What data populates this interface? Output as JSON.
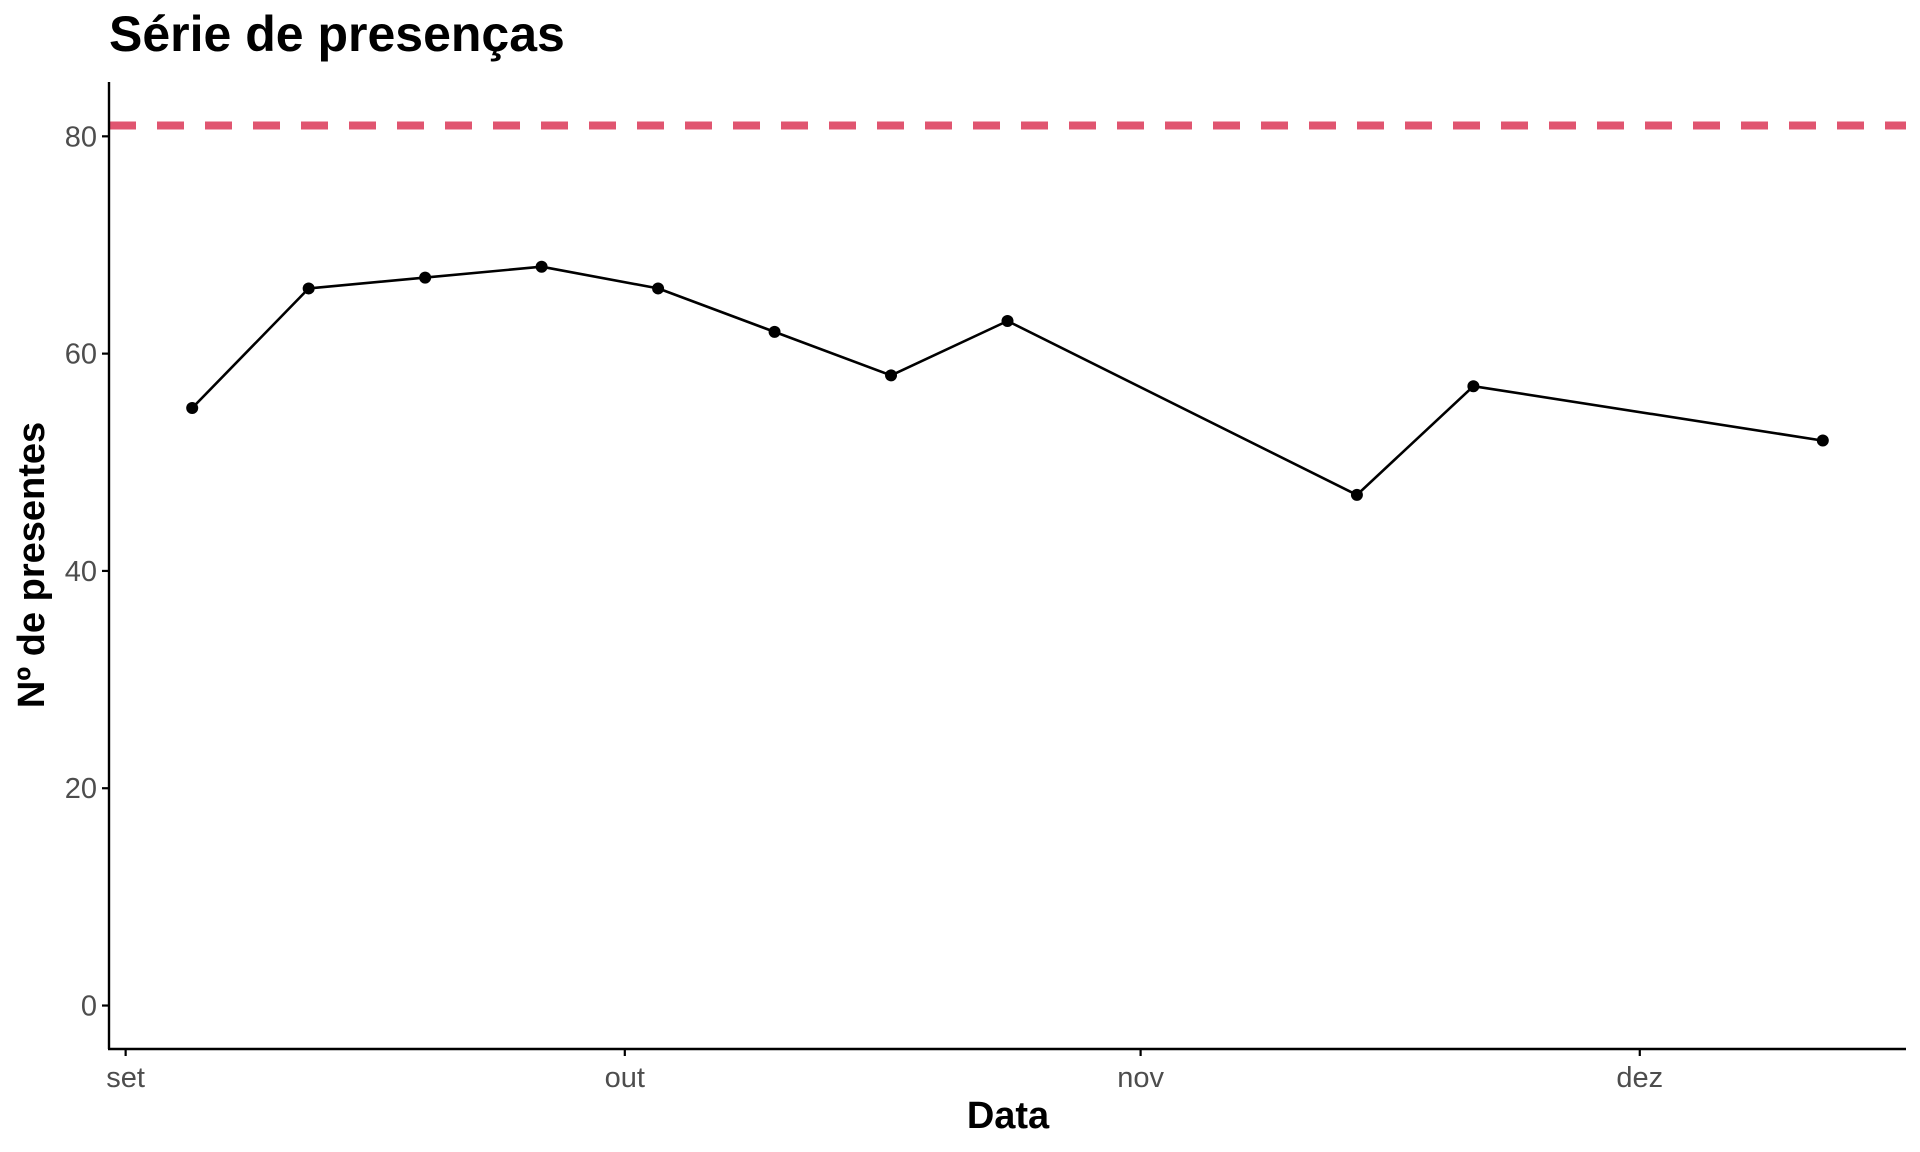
{
  "chart_data": {
    "type": "line",
    "title": "Série de presenças",
    "xlabel": "Data",
    "ylabel": "Nº de presentes",
    "x_ticks": [
      {
        "date": "2023-09-01",
        "label": "set"
      },
      {
        "date": "2023-10-01",
        "label": "out"
      },
      {
        "date": "2023-11-01",
        "label": "nov"
      },
      {
        "date": "2023-12-01",
        "label": "dez"
      }
    ],
    "xlim": [
      "2023-08-31",
      "2023-12-17"
    ],
    "y_ticks": [
      0,
      20,
      40,
      60,
      80
    ],
    "ylim": [
      -4,
      85
    ],
    "grid": false,
    "series": [
      {
        "color": "#000000",
        "points": [
          {
            "x": "2023-09-05",
            "y": 55
          },
          {
            "x": "2023-09-12",
            "y": 66
          },
          {
            "x": "2023-09-19",
            "y": 67
          },
          {
            "x": "2023-09-26",
            "y": 68
          },
          {
            "x": "2023-10-03",
            "y": 66
          },
          {
            "x": "2023-10-10",
            "y": 62
          },
          {
            "x": "2023-10-17",
            "y": 58
          },
          {
            "x": "2023-10-24",
            "y": 63
          },
          {
            "x": "2023-11-14",
            "y": 47
          },
          {
            "x": "2023-11-21",
            "y": 57
          },
          {
            "x": "2023-12-12",
            "y": 52
          }
        ]
      }
    ],
    "reference_line": {
      "y": 81,
      "color": "#E05570",
      "style": "dashed"
    }
  }
}
